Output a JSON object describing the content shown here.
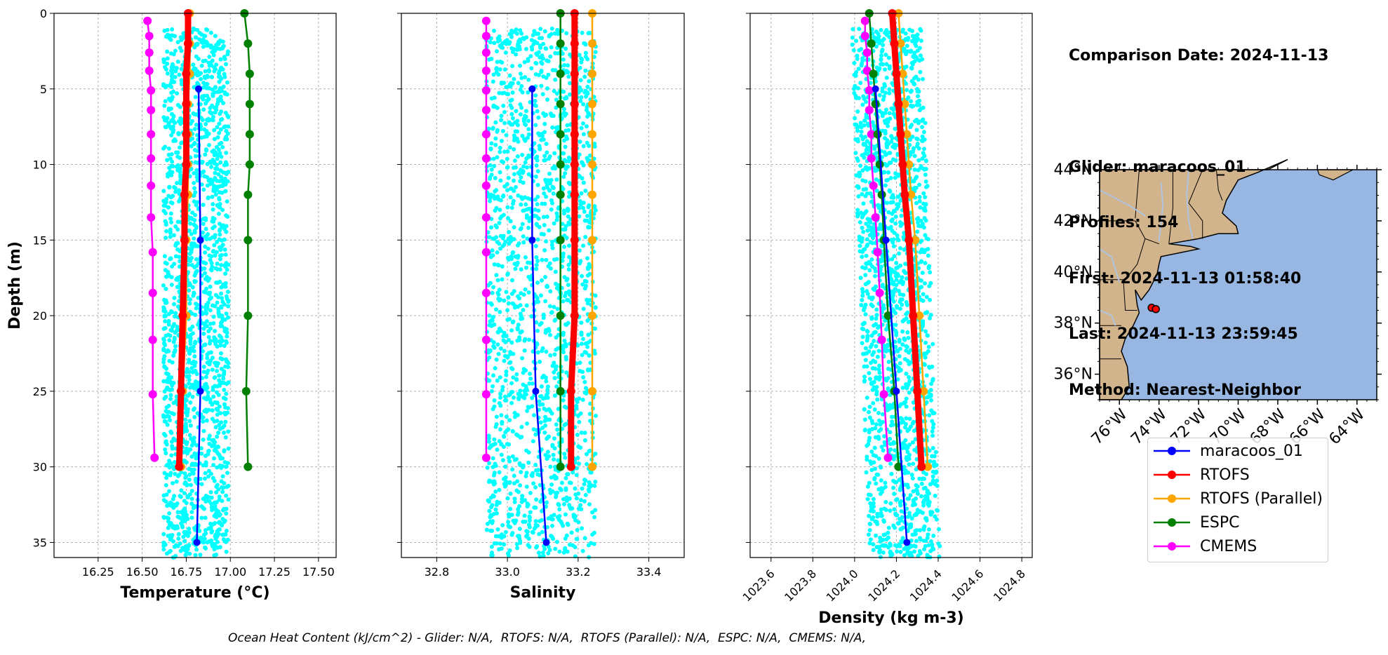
{
  "chart_data": [
    {
      "type": "line",
      "panel": "temperature",
      "xlabel": "Temperature (°C)",
      "ylabel": "Depth (m)",
      "xlim": [
        16.0,
        17.6
      ],
      "ylim": [
        36,
        0
      ],
      "xticks": [
        "16.25",
        "16.50",
        "16.75",
        "17.00",
        "17.25",
        "17.50"
      ],
      "yticks": [
        "0",
        "5",
        "10",
        "15",
        "20",
        "25",
        "30",
        "35"
      ],
      "grid": true,
      "series": [
        {
          "name": "maracoos_01",
          "color": "#0000ff",
          "depth": [
            5,
            15,
            25,
            35
          ],
          "values": [
            16.82,
            16.83,
            16.83,
            16.81
          ]
        },
        {
          "name": "RTOFS",
          "color": "#ff0000",
          "depth": [
            0,
            2,
            4,
            6,
            8,
            10,
            12,
            15,
            20,
            25,
            30
          ],
          "values": [
            16.76,
            16.76,
            16.75,
            16.75,
            16.75,
            16.75,
            16.74,
            16.74,
            16.73,
            16.72,
            16.71
          ]
        },
        {
          "name": "RTOFS (Parallel)",
          "color": "#ffa500",
          "depth": [
            0,
            2,
            4,
            6,
            8,
            10,
            12,
            15,
            20,
            25,
            30
          ],
          "values": [
            16.77,
            16.77,
            16.77,
            16.76,
            16.76,
            16.76,
            16.76,
            16.75,
            16.75,
            16.73,
            16.72
          ]
        },
        {
          "name": "ESPC",
          "color": "#008000",
          "depth": [
            0,
            2,
            4,
            6,
            8,
            10,
            12,
            15,
            20,
            25,
            30
          ],
          "values": [
            17.08,
            17.1,
            17.11,
            17.11,
            17.11,
            17.11,
            17.1,
            17.1,
            17.1,
            17.09,
            17.1
          ]
        },
        {
          "name": "CMEMS",
          "color": "#ff00ff",
          "depth": [
            0.5,
            1.5,
            2.6,
            3.8,
            5.1,
            6.4,
            8.0,
            9.6,
            11.4,
            13.5,
            15.8,
            18.5,
            21.6,
            25.2,
            29.4
          ],
          "values": [
            16.53,
            16.54,
            16.54,
            16.54,
            16.55,
            16.55,
            16.55,
            16.55,
            16.55,
            16.55,
            16.56,
            16.56,
            16.56,
            16.56,
            16.57
          ]
        }
      ],
      "scatter": {
        "color": "#00ffff",
        "x_range": [
          16.62,
          16.99
        ],
        "depth_range": [
          1,
          36
        ]
      }
    },
    {
      "type": "line",
      "panel": "salinity",
      "xlabel": "Salinity",
      "xlim": [
        32.7,
        33.5
      ],
      "ylim": [
        36,
        0
      ],
      "xticks": [
        "32.8",
        "33.0",
        "33.2",
        "33.4"
      ],
      "grid": true,
      "series": [
        {
          "name": "maracoos_01",
          "color": "#0000ff",
          "depth": [
            5,
            15,
            25,
            35
          ],
          "values": [
            33.07,
            33.07,
            33.08,
            33.11
          ]
        },
        {
          "name": "RTOFS",
          "color": "#ff0000",
          "depth": [
            0,
            2,
            4,
            6,
            8,
            10,
            12,
            15,
            20,
            25,
            30
          ],
          "values": [
            33.19,
            33.19,
            33.19,
            33.19,
            33.19,
            33.19,
            33.19,
            33.19,
            33.19,
            33.18,
            33.18
          ]
        },
        {
          "name": "RTOFS (Parallel)",
          "color": "#ffa500",
          "depth": [
            0,
            2,
            4,
            6,
            8,
            10,
            12,
            15,
            20,
            25,
            30
          ],
          "values": [
            33.24,
            33.24,
            33.24,
            33.24,
            33.24,
            33.24,
            33.24,
            33.24,
            33.24,
            33.24,
            33.24
          ]
        },
        {
          "name": "ESPC",
          "color": "#008000",
          "depth": [
            0,
            2,
            4,
            6,
            8,
            10,
            12,
            15,
            20,
            25,
            30
          ],
          "values": [
            33.15,
            33.15,
            33.15,
            33.15,
            33.15,
            33.15,
            33.15,
            33.15,
            33.15,
            33.15,
            33.15
          ]
        },
        {
          "name": "CMEMS",
          "color": "#ff00ff",
          "depth": [
            0.5,
            1.5,
            2.6,
            3.8,
            5.1,
            6.4,
            8.0,
            9.6,
            11.4,
            13.5,
            15.8,
            18.5,
            21.6,
            25.2,
            29.4
          ],
          "values": [
            32.94,
            32.94,
            32.94,
            32.94,
            32.94,
            32.94,
            32.94,
            32.94,
            32.94,
            32.94,
            32.94,
            32.94,
            32.94,
            32.94,
            32.94
          ]
        }
      ],
      "scatter": {
        "color": "#00ffff",
        "x_range": [
          32.94,
          33.25
        ],
        "depth_range": [
          1,
          36
        ]
      }
    },
    {
      "type": "line",
      "panel": "density",
      "xlabel": "Density (kg m-3)",
      "xlim": [
        1023.5,
        1024.85
      ],
      "ylim": [
        36,
        0
      ],
      "xticks": [
        "1023.6",
        "1023.8",
        "1024.0",
        "1024.2",
        "1024.4",
        "1024.6",
        "1024.8"
      ],
      "grid": true,
      "series": [
        {
          "name": "maracoos_01",
          "color": "#0000ff",
          "depth": [
            5,
            15,
            25,
            35
          ],
          "values": [
            1024.1,
            1024.15,
            1024.2,
            1024.25
          ]
        },
        {
          "name": "RTOFS",
          "color": "#ff0000",
          "depth": [
            0,
            2,
            4,
            6,
            8,
            10,
            12,
            15,
            20,
            25,
            30
          ],
          "values": [
            1024.18,
            1024.19,
            1024.2,
            1024.21,
            1024.22,
            1024.23,
            1024.24,
            1024.26,
            1024.28,
            1024.3,
            1024.32
          ]
        },
        {
          "name": "RTOFS (Parallel)",
          "color": "#ffa500",
          "depth": [
            0,
            2,
            4,
            6,
            8,
            10,
            12,
            15,
            20,
            25,
            30
          ],
          "values": [
            1024.21,
            1024.22,
            1024.23,
            1024.24,
            1024.25,
            1024.26,
            1024.27,
            1024.29,
            1024.31,
            1024.33,
            1024.35
          ]
        },
        {
          "name": "ESPC",
          "color": "#008000",
          "depth": [
            0,
            2,
            4,
            6,
            8,
            10,
            12,
            15,
            20,
            25,
            30
          ],
          "values": [
            1024.07,
            1024.08,
            1024.09,
            1024.1,
            1024.11,
            1024.12,
            1024.13,
            1024.14,
            1024.16,
            1024.19,
            1024.21
          ]
        },
        {
          "name": "CMEMS",
          "color": "#ff00ff",
          "depth": [
            0.5,
            1.5,
            2.6,
            3.8,
            5.1,
            6.4,
            8.0,
            9.6,
            11.4,
            13.5,
            15.8,
            18.5,
            21.6,
            25.2,
            29.4
          ],
          "values": [
            1024.05,
            1024.05,
            1024.06,
            1024.06,
            1024.07,
            1024.07,
            1024.08,
            1024.08,
            1024.09,
            1024.1,
            1024.11,
            1024.12,
            1024.13,
            1024.14,
            1024.16
          ]
        }
      ],
      "scatter": {
        "color": "#00ffff",
        "x_range": [
          1023.98,
          1024.37
        ],
        "depth_range": [
          1,
          36
        ]
      }
    }
  ],
  "map": {
    "lat_ticks": [
      "36°N",
      "38°N",
      "40°N",
      "42°N",
      "44°N"
    ],
    "lon_ticks": [
      "76°W",
      "74°W",
      "72°W",
      "70°W",
      "68°W",
      "66°W",
      "64°W"
    ],
    "lat_range": [
      35,
      44
    ],
    "lon_range": [
      -77,
      -63
    ],
    "land_color": "#d2b48c",
    "ocean_color": "#97b6e1",
    "glider_position": [
      -74.3,
      38.6
    ],
    "glider_marker_color": "#ff0000"
  },
  "info": {
    "comparison": "Comparison Date: 2024-11-13",
    "glider": "Glider: maracoos_01",
    "profiles": "Profiles: 154",
    "first": "First: 2024-11-13 01:58:40",
    "last": "Last: 2024-11-13 23:59:45",
    "method": "Method: Nearest-Neighbor"
  },
  "legend": [
    {
      "label": "maracoos_01",
      "color": "#0000ff"
    },
    {
      "label": "RTOFS",
      "color": "#ff0000"
    },
    {
      "label": "RTOFS (Parallel)",
      "color": "#ffa500"
    },
    {
      "label": "ESPC",
      "color": "#008000"
    },
    {
      "label": "CMEMS",
      "color": "#ff00ff"
    }
  ],
  "ohc_text": "Ocean Heat Content (kJ/cm^2) - Glider: N/A,  RTOFS: N/A,  RTOFS (Parallel): N/A,  ESPC: N/A,  CMEMS: N/A,"
}
